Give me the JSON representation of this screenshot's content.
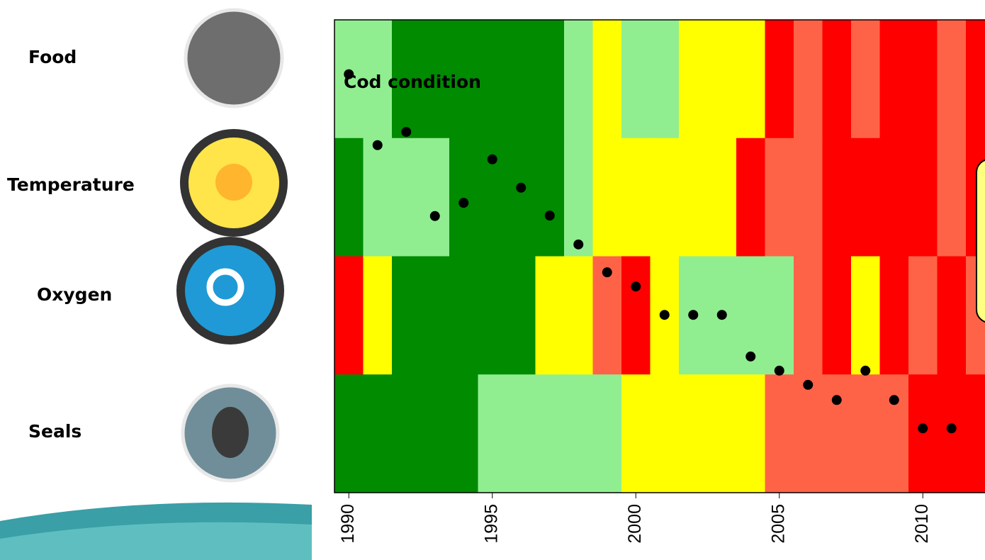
{
  "chart_data": {
    "type": "heatmap-dots",
    "x": [
      1990,
      1991,
      1992,
      1993,
      1994,
      1995,
      1996,
      1997,
      1998,
      1999,
      2000,
      2001,
      2002,
      2003,
      2004,
      2005,
      2006,
      2007,
      2008,
      2009,
      2010,
      2011,
      2012
    ],
    "xlim": [
      1989.5,
      2012.5
    ],
    "xticks": [
      1990,
      1995,
      2000,
      2005,
      2010
    ],
    "rows": [
      {
        "name": "Food",
        "colors": [
          "#90ee90",
          "#90ee90",
          "#008b00",
          "#008b00",
          "#008b00",
          "#008b00",
          "#008b00",
          "#008b00",
          "#90ee90",
          "#ffff00",
          "#90ee90",
          "#90ee90",
          "#ffff00",
          "#ffff00",
          "#ffff00",
          "#ff0000",
          "#ff6347",
          "#ff0000",
          "#ff6347",
          "#ff0000",
          "#ff0000",
          "#ff6347",
          "#ff0000"
        ]
      },
      {
        "name": "Temperature",
        "colors": [
          "#008b00",
          "#90ee90",
          "#90ee90",
          "#90ee90",
          "#008b00",
          "#008b00",
          "#008b00",
          "#008b00",
          "#90ee90",
          "#ffff00",
          "#ffff00",
          "#ffff00",
          "#ffff00",
          "#ffff00",
          "#ff0000",
          "#ff6347",
          "#ff6347",
          "#ff0000",
          "#ff0000",
          "#ff0000",
          "#ff0000",
          "#ff6347",
          "#ff0000"
        ]
      },
      {
        "name": "Oxygen",
        "colors": [
          "#ff0000",
          "#ffff00",
          "#008b00",
          "#008b00",
          "#008b00",
          "#008b00",
          "#008b00",
          "#ffff00",
          "#ffff00",
          "#ff6347",
          "#ff0000",
          "#ffff00",
          "#90ee90",
          "#90ee90",
          "#90ee90",
          "#90ee90",
          "#ff6347",
          "#ff0000",
          "#ffff00",
          "#ff0000",
          "#ff6347",
          "#ff0000",
          "#ff6347"
        ]
      },
      {
        "name": "Seals",
        "colors": [
          "#008b00",
          "#008b00",
          "#008b00",
          "#008b00",
          "#008b00",
          "#90ee90",
          "#90ee90",
          "#90ee90",
          "#90ee90",
          "#90ee90",
          "#ffff00",
          "#ffff00",
          "#ffff00",
          "#ffff00",
          "#ffff00",
          "#ff6347",
          "#ff6347",
          "#ff6347",
          "#ff6347",
          "#ff6347",
          "#ff0000",
          "#ff0000",
          "#ff0000"
        ]
      }
    ],
    "series": [
      {
        "name": "Cod condition",
        "color": "#000000",
        "values": [
          0.885,
          0.735,
          0.763,
          0.585,
          0.613,
          0.705,
          0.645,
          0.586,
          0.525,
          0.466,
          0.436,
          0.376,
          0.376,
          0.376,
          0.288,
          0.258,
          0.228,
          0.196,
          0.258,
          0.196,
          0.136,
          0.136,
          null
        ]
      }
    ]
  }
}
